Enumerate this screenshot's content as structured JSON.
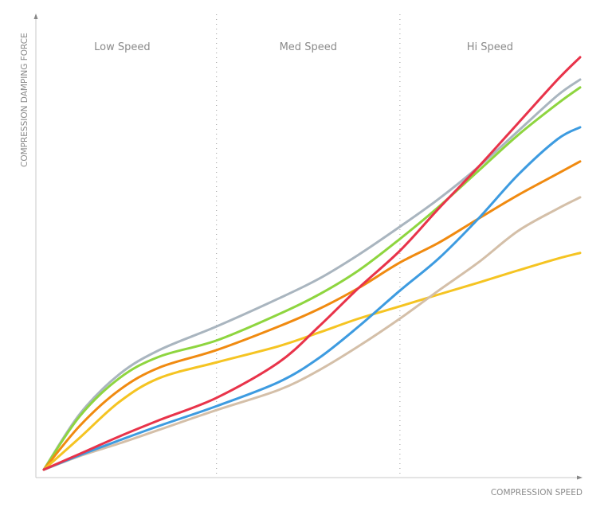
{
  "chart_data": {
    "type": "line",
    "title": "",
    "xlabel": "COMPRESSION SPEED",
    "ylabel": "COMPRESSION DAMPING FORCE",
    "xlim": [
      0,
      100
    ],
    "ylim": [
      0,
      100
    ],
    "grid": false,
    "regions": [
      {
        "label": "Low Speed",
        "from": 0,
        "to": 32.2
      },
      {
        "label": "Med Speed",
        "from": 32.2,
        "to": 66.4
      },
      {
        "label": "Hi Speed",
        "from": 66.4,
        "to": 100
      }
    ],
    "x": [
      0,
      6.7,
      14.1,
      21.5,
      32.2,
      43.8,
      51.3,
      58.7,
      66.4,
      73.6,
      81,
      88.4,
      95.8,
      100
    ],
    "series": [
      {
        "name": "gray",
        "color": "#a9b5bf",
        "values": [
          0,
          12.7,
          21.8,
          27.3,
          32.7,
          39.1,
          43.6,
          49.1,
          55.5,
          61.8,
          69.1,
          77.3,
          85.5,
          89.1
        ]
      },
      {
        "name": "green",
        "color": "#8ed53f",
        "values": [
          0,
          12.2,
          20.9,
          25.8,
          29.5,
          35.5,
          40,
          45.5,
          52.7,
          60,
          68.2,
          76.4,
          83.6,
          87.3
        ]
      },
      {
        "name": "orange",
        "color": "#f08a10",
        "values": [
          0,
          10,
          18.2,
          23.3,
          27.3,
          32.7,
          36.7,
          41.5,
          47.3,
          51.8,
          57.3,
          62.7,
          67.6,
          70.4
        ]
      },
      {
        "name": "yellow",
        "color": "#f5c422",
        "values": [
          0,
          7.3,
          15.5,
          20.9,
          24.5,
          28.2,
          31.3,
          34.5,
          37.3,
          40,
          42.7,
          45.5,
          48.2,
          49.5
        ]
      },
      {
        "name": "tan",
        "color": "#d4bfa8",
        "values": [
          0,
          3.1,
          6,
          9.1,
          13.6,
          18.2,
          22.7,
          28.2,
          34.5,
          40.9,
          47.3,
          54.5,
          59.6,
          62.2
        ]
      },
      {
        "name": "blue",
        "color": "#3d9be0",
        "values": [
          0,
          3.3,
          6.7,
          10,
          14.5,
          20,
          25.5,
          32.7,
          40.9,
          48.2,
          57.3,
          67.3,
          75.5,
          78.2
        ]
      },
      {
        "name": "red",
        "color": "#e8334a",
        "values": [
          0,
          3.6,
          7.6,
          11.3,
          16.4,
          24.5,
          32.7,
          41.5,
          50,
          59.6,
          69.1,
          79.1,
          89.1,
          94.2
        ]
      }
    ]
  }
}
